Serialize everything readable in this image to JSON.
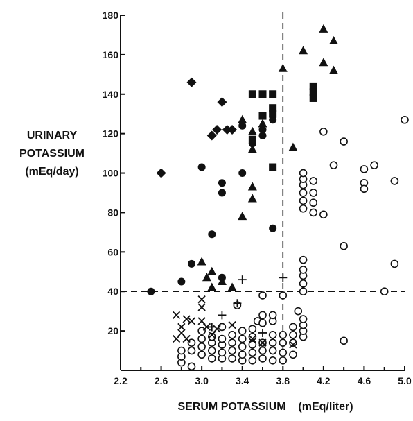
{
  "chart_data": {
    "type": "scatter",
    "ylabel_lines": [
      "URINARY",
      "POTASSIUM",
      "(mEq/day)"
    ],
    "xlabel": "SERUM POTASSIUM    (mEq/liter)",
    "xlim": [
      2.2,
      5.0
    ],
    "ylim": [
      0,
      180
    ],
    "x_ticks": [
      2.2,
      2.6,
      3.0,
      3.4,
      3.8,
      4.2,
      4.6,
      5.0
    ],
    "x_tick_labels": [
      "2.2",
      "2.6",
      "3.0",
      "3.4",
      "3.8",
      "4.2",
      "4.6",
      "5.0"
    ],
    "y_ticks": [
      20,
      40,
      60,
      80,
      100,
      120,
      140,
      160,
      180
    ],
    "y_tick_labels": [
      "20",
      "40",
      "60",
      "80",
      "100",
      "120",
      "140",
      "160",
      "180"
    ],
    "reference_lines": {
      "x": 3.8,
      "y": 40
    },
    "series": [
      {
        "marker": "diamond",
        "points": [
          [
            2.6,
            100
          ],
          [
            2.9,
            146
          ],
          [
            3.1,
            119
          ],
          [
            3.15,
            122
          ],
          [
            3.2,
            136
          ],
          [
            3.25,
            122
          ],
          [
            3.3,
            122
          ]
        ]
      },
      {
        "marker": "square",
        "points": [
          [
            3.5,
            117
          ],
          [
            3.5,
            140
          ],
          [
            3.6,
            140
          ],
          [
            3.6,
            129
          ],
          [
            3.7,
            140
          ],
          [
            3.7,
            133
          ],
          [
            3.7,
            130
          ],
          [
            3.7,
            103
          ],
          [
            4.1,
            144
          ],
          [
            4.1,
            141
          ],
          [
            4.1,
            138
          ]
        ]
      },
      {
        "marker": "circle",
        "points": [
          [
            2.5,
            40
          ],
          [
            2.8,
            45
          ],
          [
            2.9,
            54
          ],
          [
            3.0,
            103
          ],
          [
            3.1,
            69
          ],
          [
            3.2,
            95
          ],
          [
            3.2,
            90
          ],
          [
            3.2,
            47
          ],
          [
            3.4,
            100
          ],
          [
            3.4,
            124
          ],
          [
            3.5,
            115
          ],
          [
            3.6,
            119
          ],
          [
            3.6,
            122
          ],
          [
            3.7,
            127
          ],
          [
            3.7,
            72
          ]
        ]
      },
      {
        "marker": "triangle",
        "points": [
          [
            3.0,
            55
          ],
          [
            3.05,
            47
          ],
          [
            3.1,
            42
          ],
          [
            3.1,
            50
          ],
          [
            3.2,
            45
          ],
          [
            3.3,
            42
          ],
          [
            3.4,
            127
          ],
          [
            3.4,
            78
          ],
          [
            3.5,
            93
          ],
          [
            3.5,
            87
          ],
          [
            3.5,
            121
          ],
          [
            3.5,
            112
          ],
          [
            3.6,
            125
          ],
          [
            3.8,
            153
          ],
          [
            3.9,
            113
          ],
          [
            4.0,
            162
          ],
          [
            4.2,
            173
          ],
          [
            4.2,
            156
          ],
          [
            4.3,
            167
          ],
          [
            4.3,
            152
          ]
        ]
      },
      {
        "marker": "cross",
        "points": [
          [
            2.75,
            28
          ],
          [
            2.75,
            16
          ],
          [
            2.8,
            19
          ],
          [
            2.8,
            22
          ],
          [
            2.85,
            26
          ],
          [
            2.85,
            16
          ],
          [
            2.9,
            25
          ],
          [
            3.0,
            36
          ],
          [
            3.0,
            32
          ],
          [
            3.0,
            25
          ],
          [
            3.05,
            22
          ],
          [
            3.1,
            18
          ],
          [
            3.15,
            21
          ],
          [
            3.3,
            23
          ],
          [
            3.5,
            16
          ],
          [
            3.6,
            14
          ],
          [
            3.9,
            13
          ]
        ]
      },
      {
        "marker": "plus",
        "points": [
          [
            3.2,
            28
          ],
          [
            3.35,
            34
          ],
          [
            3.4,
            46
          ],
          [
            3.6,
            19
          ],
          [
            3.8,
            47
          ],
          [
            3.1,
            22
          ]
        ]
      },
      {
        "marker": "open-circle",
        "points": [
          [
            2.8,
            4
          ],
          [
            2.8,
            7
          ],
          [
            2.8,
            10
          ],
          [
            2.9,
            2
          ],
          [
            2.9,
            10
          ],
          [
            2.9,
            14
          ],
          [
            3.0,
            8
          ],
          [
            3.0,
            12
          ],
          [
            3.0,
            16
          ],
          [
            3.0,
            20
          ],
          [
            3.1,
            6
          ],
          [
            3.1,
            10
          ],
          [
            3.1,
            14
          ],
          [
            3.1,
            17
          ],
          [
            3.2,
            6
          ],
          [
            3.2,
            9
          ],
          [
            3.2,
            13
          ],
          [
            3.2,
            16
          ],
          [
            3.2,
            22
          ],
          [
            3.3,
            6
          ],
          [
            3.3,
            10
          ],
          [
            3.3,
            14
          ],
          [
            3.3,
            18
          ],
          [
            3.35,
            33
          ],
          [
            3.4,
            5
          ],
          [
            3.4,
            8
          ],
          [
            3.4,
            12
          ],
          [
            3.4,
            16
          ],
          [
            3.4,
            20
          ],
          [
            3.5,
            5
          ],
          [
            3.5,
            9
          ],
          [
            3.5,
            13
          ],
          [
            3.5,
            17
          ],
          [
            3.5,
            21
          ],
          [
            3.55,
            25
          ],
          [
            3.6,
            6
          ],
          [
            3.6,
            10
          ],
          [
            3.6,
            14
          ],
          [
            3.6,
            24
          ],
          [
            3.6,
            28
          ],
          [
            3.7,
            5
          ],
          [
            3.7,
            10
          ],
          [
            3.7,
            14
          ],
          [
            3.7,
            18
          ],
          [
            3.7,
            25
          ],
          [
            3.7,
            28
          ],
          [
            3.6,
            38
          ],
          [
            3.8,
            5
          ],
          [
            3.8,
            9
          ],
          [
            3.8,
            14
          ],
          [
            3.8,
            18
          ],
          [
            3.8,
            38
          ],
          [
            3.9,
            8
          ],
          [
            3.9,
            14
          ],
          [
            3.9,
            18
          ],
          [
            3.9,
            22
          ],
          [
            3.95,
            30
          ],
          [
            4.0,
            17
          ],
          [
            4.0,
            20
          ],
          [
            4.0,
            23
          ],
          [
            4.0,
            26
          ],
          [
            4.0,
            40
          ],
          [
            4.0,
            44
          ],
          [
            4.0,
            48
          ],
          [
            4.0,
            51
          ],
          [
            4.0,
            56
          ],
          [
            4.0,
            82
          ],
          [
            4.0,
            86
          ],
          [
            4.0,
            90
          ],
          [
            4.0,
            94
          ],
          [
            4.0,
            97
          ],
          [
            4.0,
            100
          ],
          [
            4.1,
            80
          ],
          [
            4.1,
            85
          ],
          [
            4.1,
            90
          ],
          [
            4.1,
            96
          ],
          [
            4.2,
            79
          ],
          [
            4.2,
            121
          ],
          [
            4.3,
            104
          ],
          [
            4.4,
            116
          ],
          [
            4.4,
            63
          ],
          [
            4.4,
            15
          ],
          [
            4.6,
            102
          ],
          [
            4.6,
            95
          ],
          [
            4.6,
            92
          ],
          [
            4.7,
            104
          ],
          [
            4.8,
            40
          ],
          [
            4.9,
            96
          ],
          [
            4.9,
            54
          ],
          [
            5.0,
            127
          ]
        ]
      }
    ]
  }
}
